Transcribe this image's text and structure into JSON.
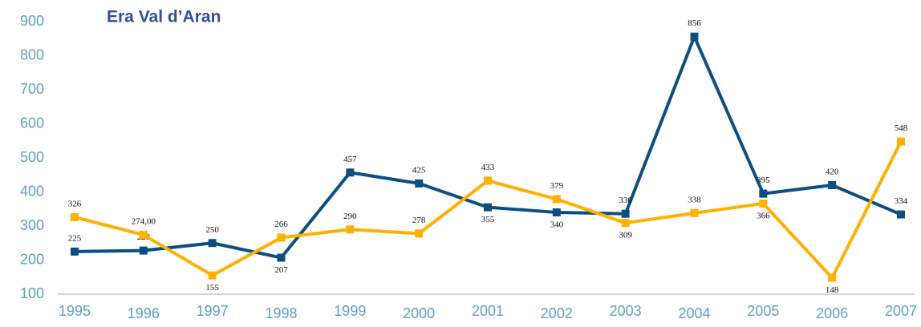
{
  "chart_data": {
    "type": "line",
    "title": "Era Val d’Aran",
    "categories": [
      "1995",
      "1996",
      "1997",
      "1998",
      "1999",
      "2000",
      "2001",
      "2002",
      "2003",
      "2004",
      "2005",
      "2006",
      "2007"
    ],
    "series": [
      {
        "color": "#0b4f82",
        "values": [
          225,
          228,
          250,
          207,
          457,
          425,
          355,
          340,
          336,
          856,
          395,
          420,
          334
        ]
      },
      {
        "color": "#ffb000",
        "values": [
          326,
          274,
          155,
          266,
          290,
          278,
          433,
          379,
          309,
          338,
          366,
          148,
          548
        ],
        "value_labels": [
          "326",
          "274,00",
          "155",
          "266",
          "290",
          "278",
          "433",
          "379",
          "309",
          "338",
          "366",
          "148",
          "548"
        ]
      }
    ],
    "ylim": [
      100,
      900
    ],
    "yticks": [
      100,
      200,
      300,
      400,
      500,
      600,
      700,
      800,
      900
    ],
    "grid": false
  }
}
